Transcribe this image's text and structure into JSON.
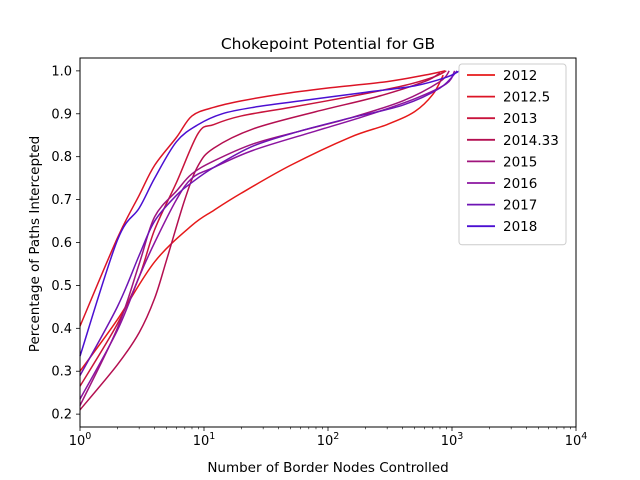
{
  "chart_data": {
    "type": "line",
    "title": "Chokepoint Potential for GB",
    "xlabel": "Number of Border Nodes Controlled",
    "ylabel": "Percentage of Paths Intercepted",
    "xscale": "log",
    "xlim": [
      1,
      10000
    ],
    "ylim": [
      0.17,
      1.03
    ],
    "xticks": [
      {
        "value": 1,
        "base": "10",
        "exp": "0"
      },
      {
        "value": 10,
        "base": "10",
        "exp": "1"
      },
      {
        "value": 100,
        "base": "10",
        "exp": "2"
      },
      {
        "value": 1000,
        "base": "10",
        "exp": "3"
      },
      {
        "value": 10000,
        "base": "10",
        "exp": "4"
      }
    ],
    "yticks": [
      {
        "value": 0.2,
        "label": "0.2"
      },
      {
        "value": 0.3,
        "label": "0.3"
      },
      {
        "value": 0.4,
        "label": "0.4"
      },
      {
        "value": 0.5,
        "label": "0.5"
      },
      {
        "value": 0.6,
        "label": "0.6"
      },
      {
        "value": 0.7,
        "label": "0.7"
      },
      {
        "value": 0.8,
        "label": "0.8"
      },
      {
        "value": 0.9,
        "label": "0.9"
      },
      {
        "value": 1.0,
        "label": "1.0"
      }
    ],
    "grid": false,
    "legend_position": "top-right",
    "series": [
      {
        "name": "2012",
        "color": "#e61919",
        "x": [
          1,
          2,
          4,
          8,
          12,
          20,
          50,
          150,
          300,
          500,
          700,
          850
        ],
        "y": [
          0.3,
          0.42,
          0.555,
          0.64,
          0.675,
          0.715,
          0.78,
          0.845,
          0.875,
          0.905,
          0.945,
          0.99
        ]
      },
      {
        "name": "2012.5",
        "color": "#dc1426",
        "x": [
          1,
          2,
          3,
          4,
          6,
          8,
          12,
          20,
          40,
          100,
          300,
          600,
          880
        ],
        "y": [
          0.405,
          0.61,
          0.71,
          0.78,
          0.845,
          0.895,
          0.915,
          0.93,
          0.945,
          0.96,
          0.975,
          0.99,
          1.0
        ]
      },
      {
        "name": "2013",
        "color": "#c8143c",
        "x": [
          1,
          2,
          3,
          4,
          6,
          9,
          12,
          20,
          50,
          150,
          400,
          700,
          900
        ],
        "y": [
          0.265,
          0.41,
          0.52,
          0.63,
          0.74,
          0.855,
          0.875,
          0.895,
          0.915,
          0.94,
          0.965,
          0.985,
          1.0
        ]
      },
      {
        "name": "2014.33",
        "color": "#b40f50",
        "x": [
          1,
          2,
          3,
          4,
          5,
          7,
          9,
          12,
          25,
          80,
          250,
          600,
          800
        ],
        "y": [
          0.21,
          0.315,
          0.39,
          0.47,
          0.56,
          0.7,
          0.78,
          0.82,
          0.865,
          0.905,
          0.94,
          0.975,
          0.995
        ]
      },
      {
        "name": "2015",
        "color": "#a0147c",
        "x": [
          1,
          2,
          3,
          4,
          6,
          8,
          12,
          25,
          60,
          150,
          400,
          800,
          950
        ],
        "y": [
          0.22,
          0.4,
          0.55,
          0.66,
          0.72,
          0.76,
          0.79,
          0.83,
          0.86,
          0.89,
          0.93,
          0.975,
          1.0
        ]
      },
      {
        "name": "2016",
        "color": "#8c14a0",
        "x": [
          1,
          2,
          3,
          4,
          6,
          8,
          12,
          25,
          80,
          200,
          500,
          900,
          1050
        ],
        "y": [
          0.235,
          0.395,
          0.52,
          0.6,
          0.7,
          0.75,
          0.775,
          0.815,
          0.86,
          0.895,
          0.935,
          0.97,
          1.0
        ]
      },
      {
        "name": "2017",
        "color": "#6e14b4",
        "x": [
          1,
          2,
          3,
          4,
          6,
          8,
          12,
          25,
          60,
          150,
          400,
          800,
          1100
        ],
        "y": [
          0.29,
          0.45,
          0.57,
          0.65,
          0.71,
          0.74,
          0.775,
          0.825,
          0.86,
          0.89,
          0.92,
          0.96,
          1.0
        ]
      },
      {
        "name": "2018",
        "color": "#4b0fd2",
        "x": [
          1,
          2,
          3,
          4,
          6,
          9,
          14,
          25,
          60,
          200,
          500,
          900,
          1150
        ],
        "y": [
          0.335,
          0.605,
          0.68,
          0.75,
          0.835,
          0.875,
          0.9,
          0.915,
          0.93,
          0.95,
          0.965,
          0.985,
          1.0
        ]
      }
    ]
  }
}
